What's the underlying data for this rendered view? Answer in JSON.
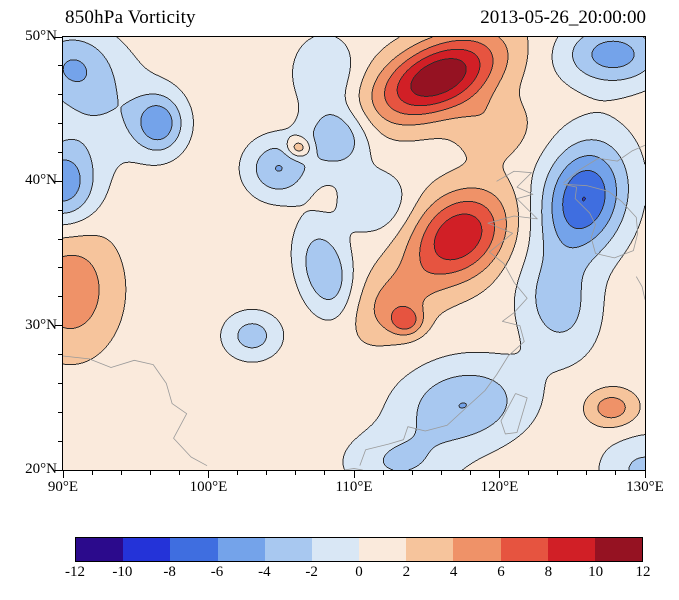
{
  "header": {
    "title": "850hPa Vorticity",
    "timestamp": "2013-05-26_20:00:00"
  },
  "colorbar": {
    "tick_labels": [
      "-12",
      "-10",
      "-8",
      "-6",
      "-4",
      "-2",
      "0",
      "2",
      "4",
      "6",
      "8",
      "10",
      "12"
    ]
  },
  "chart_data": {
    "type": "heatmap",
    "variant": "filled_contour_map",
    "title": "850hPa Vorticity",
    "timestamp": "2013-05-26_20:00:00",
    "projection": "lat-lon",
    "lon_range": [
      90,
      130
    ],
    "lat_range": [
      20,
      50
    ],
    "x_ticks": [
      {
        "lon": 90,
        "label": "90°E"
      },
      {
        "lon": 100,
        "label": "100°E"
      },
      {
        "lon": 110,
        "label": "110°E"
      },
      {
        "lon": 120,
        "label": "120°E"
      },
      {
        "lon": 130,
        "label": "130°E"
      }
    ],
    "y_ticks": [
      {
        "lat": 50,
        "label": "50°N"
      },
      {
        "lat": 40,
        "label": "40°N"
      },
      {
        "lat": 30,
        "label": "30°N"
      },
      {
        "lat": 20,
        "label": "20°N"
      }
    ],
    "minor_tick_interval": 2,
    "levels": [
      -12,
      -10,
      -8,
      -6,
      -4,
      -2,
      0,
      2,
      4,
      6,
      8,
      10,
      12
    ],
    "contour_interval": 2,
    "colors": [
      "#2b0a8c",
      "#2433d8",
      "#3f6ee0",
      "#74a3ea",
      "#a8c8f0",
      "#d9e7f5",
      "#faeadc",
      "#f6c49c",
      "#ef9268",
      "#e65440",
      "#d11f26",
      "#951222"
    ],
    "contour_line_color": "#2a2a2a",
    "coastline_color": "#9a9a9a",
    "base_value": 1,
    "features": [
      {
        "name": "north-positive-max",
        "lon": 115.8,
        "lat": 47.2,
        "peak": 11.0,
        "sigma_lon": 3.2,
        "sigma_lat": 1.7,
        "angle_deg": 25
      },
      {
        "name": "north-east-flank-ridge",
        "lon": 119.6,
        "lat": 43.8,
        "peak": 2.5,
        "sigma_lon": 1.8,
        "sigma_lat": 1.5,
        "angle_deg": 0
      },
      {
        "name": "central-positive-max",
        "lon": 117.2,
        "lat": 36.2,
        "peak": 8.8,
        "sigma_lon": 2.6,
        "sigma_lat": 2.0,
        "angle_deg": 40
      },
      {
        "name": "southwest-ridge",
        "lon": 112.5,
        "lat": 31.5,
        "peak": 3.5,
        "sigma_lon": 2.2,
        "sigma_lat": 1.6,
        "angle_deg": 40
      },
      {
        "name": "southwest-spot-max",
        "lon": 113.6,
        "lat": 30.3,
        "peak": 4.5,
        "sigma_lon": 0.8,
        "sigma_lat": 0.7,
        "angle_deg": 0
      },
      {
        "name": "west-positive-region",
        "lon": 90.5,
        "lat": 32.5,
        "peak": 4.5,
        "sigma_lon": 2.2,
        "sigma_lat": 3.0,
        "angle_deg": 0
      },
      {
        "name": "southeast-orange-spot",
        "lon": 127.7,
        "lat": 24.3,
        "peak": 4.2,
        "sigma_lon": 1.2,
        "sigma_lat": 0.9,
        "angle_deg": 0
      },
      {
        "name": "small-orange-dot",
        "lon": 106.2,
        "lat": 42.3,
        "peak": 4.5,
        "sigma_lon": 0.6,
        "sigma_lat": 0.5,
        "angle_deg": 0
      },
      {
        "name": "east-negative-max",
        "lon": 125.8,
        "lat": 38.8,
        "peak": -9.0,
        "sigma_lon": 2.0,
        "sigma_lat": 2.8,
        "angle_deg": -15
      },
      {
        "name": "east-negative-extension",
        "lon": 124.0,
        "lat": 31.5,
        "peak": -4.0,
        "sigma_lon": 1.8,
        "sigma_lat": 2.5,
        "angle_deg": 10
      },
      {
        "name": "northeast-corner-min",
        "lon": 127.8,
        "lat": 48.8,
        "peak": -6.0,
        "sigma_lon": 2.4,
        "sigma_lat": 1.5,
        "angle_deg": 0
      },
      {
        "name": "northwest-corner-min",
        "lon": 90.5,
        "lat": 48.0,
        "peak": -4.5,
        "sigma_lon": 2.0,
        "sigma_lat": 1.8,
        "angle_deg": 0
      },
      {
        "name": "northwest-band-min",
        "lon": 93.0,
        "lat": 45.0,
        "peak": -2.5,
        "sigma_lon": 2.5,
        "sigma_lat": 2.5,
        "angle_deg": 0
      },
      {
        "name": "northwest-blob-min",
        "lon": 96.6,
        "lat": 44.0,
        "peak": -6.0,
        "sigma_lon": 1.2,
        "sigma_lat": 1.4,
        "angle_deg": 0
      },
      {
        "name": "west-edge-min",
        "lon": 90.0,
        "lat": 39.8,
        "peak": -6.5,
        "sigma_lon": 1.6,
        "sigma_lat": 2.0,
        "angle_deg": 0
      },
      {
        "name": "north-central-min-west",
        "lon": 104.8,
        "lat": 40.9,
        "peak": -5.0,
        "sigma_lon": 1.5,
        "sigma_lat": 1.4,
        "angle_deg": 0
      },
      {
        "name": "north-central-min-east",
        "lon": 108.8,
        "lat": 43.0,
        "peak": -5.0,
        "sigma_lon": 1.5,
        "sigma_lat": 1.5,
        "angle_deg": 0
      },
      {
        "name": "top-center-min",
        "lon": 108.0,
        "lat": 47.5,
        "peak": -3.0,
        "sigma_lon": 1.5,
        "sigma_lat": 1.8,
        "angle_deg": 0
      },
      {
        "name": "center-min",
        "lon": 108.0,
        "lat": 33.8,
        "peak": -5.0,
        "sigma_lon": 1.2,
        "sigma_lat": 2.2,
        "angle_deg": 15
      },
      {
        "name": "mid-min",
        "lon": 111.5,
        "lat": 38.5,
        "peak": -3.0,
        "sigma_lon": 1.6,
        "sigma_lat": 1.5,
        "angle_deg": 0
      },
      {
        "name": "southwest-oval-min",
        "lon": 103.0,
        "lat": 29.3,
        "peak": -4.0,
        "sigma_lon": 1.3,
        "sigma_lat": 1.1,
        "angle_deg": 0
      },
      {
        "name": "south-min",
        "lon": 117.5,
        "lat": 24.5,
        "peak": -5.0,
        "sigma_lon": 3.0,
        "sigma_lat": 2.0,
        "angle_deg": 10
      },
      {
        "name": "south-min-2",
        "lon": 113.0,
        "lat": 20.5,
        "peak": -3.0,
        "sigma_lon": 2.5,
        "sigma_lat": 1.5,
        "angle_deg": 0
      },
      {
        "name": "southeast-corner-min",
        "lon": 130.0,
        "lat": 20.0,
        "peak": -3.5,
        "sigma_lon": 2.0,
        "sigma_lat": 1.6,
        "angle_deg": 0
      }
    ],
    "coastlines": [
      [
        [
          119.8,
          40.0
        ],
        [
          121.0,
          40.7
        ],
        [
          122.2,
          40.6
        ],
        [
          121.2,
          39.6
        ],
        [
          122.3,
          39.1
        ],
        [
          121.2,
          38.8
        ],
        [
          122.6,
          37.4
        ],
        [
          121.0,
          37.6
        ],
        [
          119.2,
          37.1
        ],
        [
          120.9,
          36.4
        ],
        [
          119.3,
          35.1
        ],
        [
          120.3,
          34.3
        ],
        [
          121.0,
          33.0
        ],
        [
          121.9,
          31.9
        ],
        [
          121.0,
          30.9
        ],
        [
          120.2,
          30.3
        ],
        [
          121.4,
          30.0
        ],
        [
          121.7,
          28.9
        ],
        [
          120.6,
          27.9
        ],
        [
          119.8,
          26.6
        ],
        [
          119.0,
          25.5
        ],
        [
          117.8,
          24.4
        ],
        [
          116.4,
          23.1
        ],
        [
          114.9,
          22.7
        ],
        [
          113.7,
          23.0
        ],
        [
          113.4,
          22.1
        ],
        [
          112.4,
          21.8
        ],
        [
          110.8,
          21.4
        ],
        [
          110.4,
          20.3
        ]
      ],
      [
        [
          124.4,
          39.8
        ],
        [
          125.3,
          39.6
        ],
        [
          125.2,
          38.8
        ],
        [
          126.2,
          37.8
        ],
        [
          126.6,
          37.0
        ],
        [
          126.3,
          36.1
        ],
        [
          126.6,
          35.0
        ],
        [
          127.9,
          34.7
        ],
        [
          129.2,
          35.2
        ],
        [
          129.5,
          36.4
        ],
        [
          129.4,
          37.5
        ],
        [
          128.4,
          38.6
        ],
        [
          127.5,
          39.3
        ],
        [
          126.0,
          39.7
        ],
        [
          124.4,
          39.8
        ]
      ],
      [
        [
          124.4,
          39.9
        ],
        [
          125.5,
          40.8
        ],
        [
          126.8,
          41.6
        ],
        [
          128.1,
          41.4
        ],
        [
          129.1,
          42.1
        ],
        [
          130.0,
          42.5
        ]
      ],
      [
        [
          121.1,
          25.3
        ],
        [
          121.9,
          25.0
        ],
        [
          121.2,
          22.6
        ],
        [
          120.4,
          22.5
        ],
        [
          120.1,
          23.4
        ],
        [
          121.1,
          25.3
        ]
      ],
      [
        [
          129.4,
          33.4
        ],
        [
          129.8,
          32.7
        ],
        [
          130.0,
          31.8
        ]
      ],
      [
        [
          109.3,
          20.0
        ],
        [
          110.0,
          20.1
        ],
        [
          110.6,
          20.0
        ]
      ],
      [
        [
          90.0,
          27.9
        ],
        [
          91.8,
          27.7
        ],
        [
          93.3,
          27.1
        ],
        [
          94.9,
          27.6
        ],
        [
          96.2,
          27.3
        ],
        [
          97.1,
          26.0
        ],
        [
          97.5,
          24.6
        ],
        [
          98.5,
          23.9
        ],
        [
          97.6,
          22.2
        ],
        [
          98.8,
          20.9
        ],
        [
          99.9,
          20.3
        ]
      ]
    ]
  }
}
